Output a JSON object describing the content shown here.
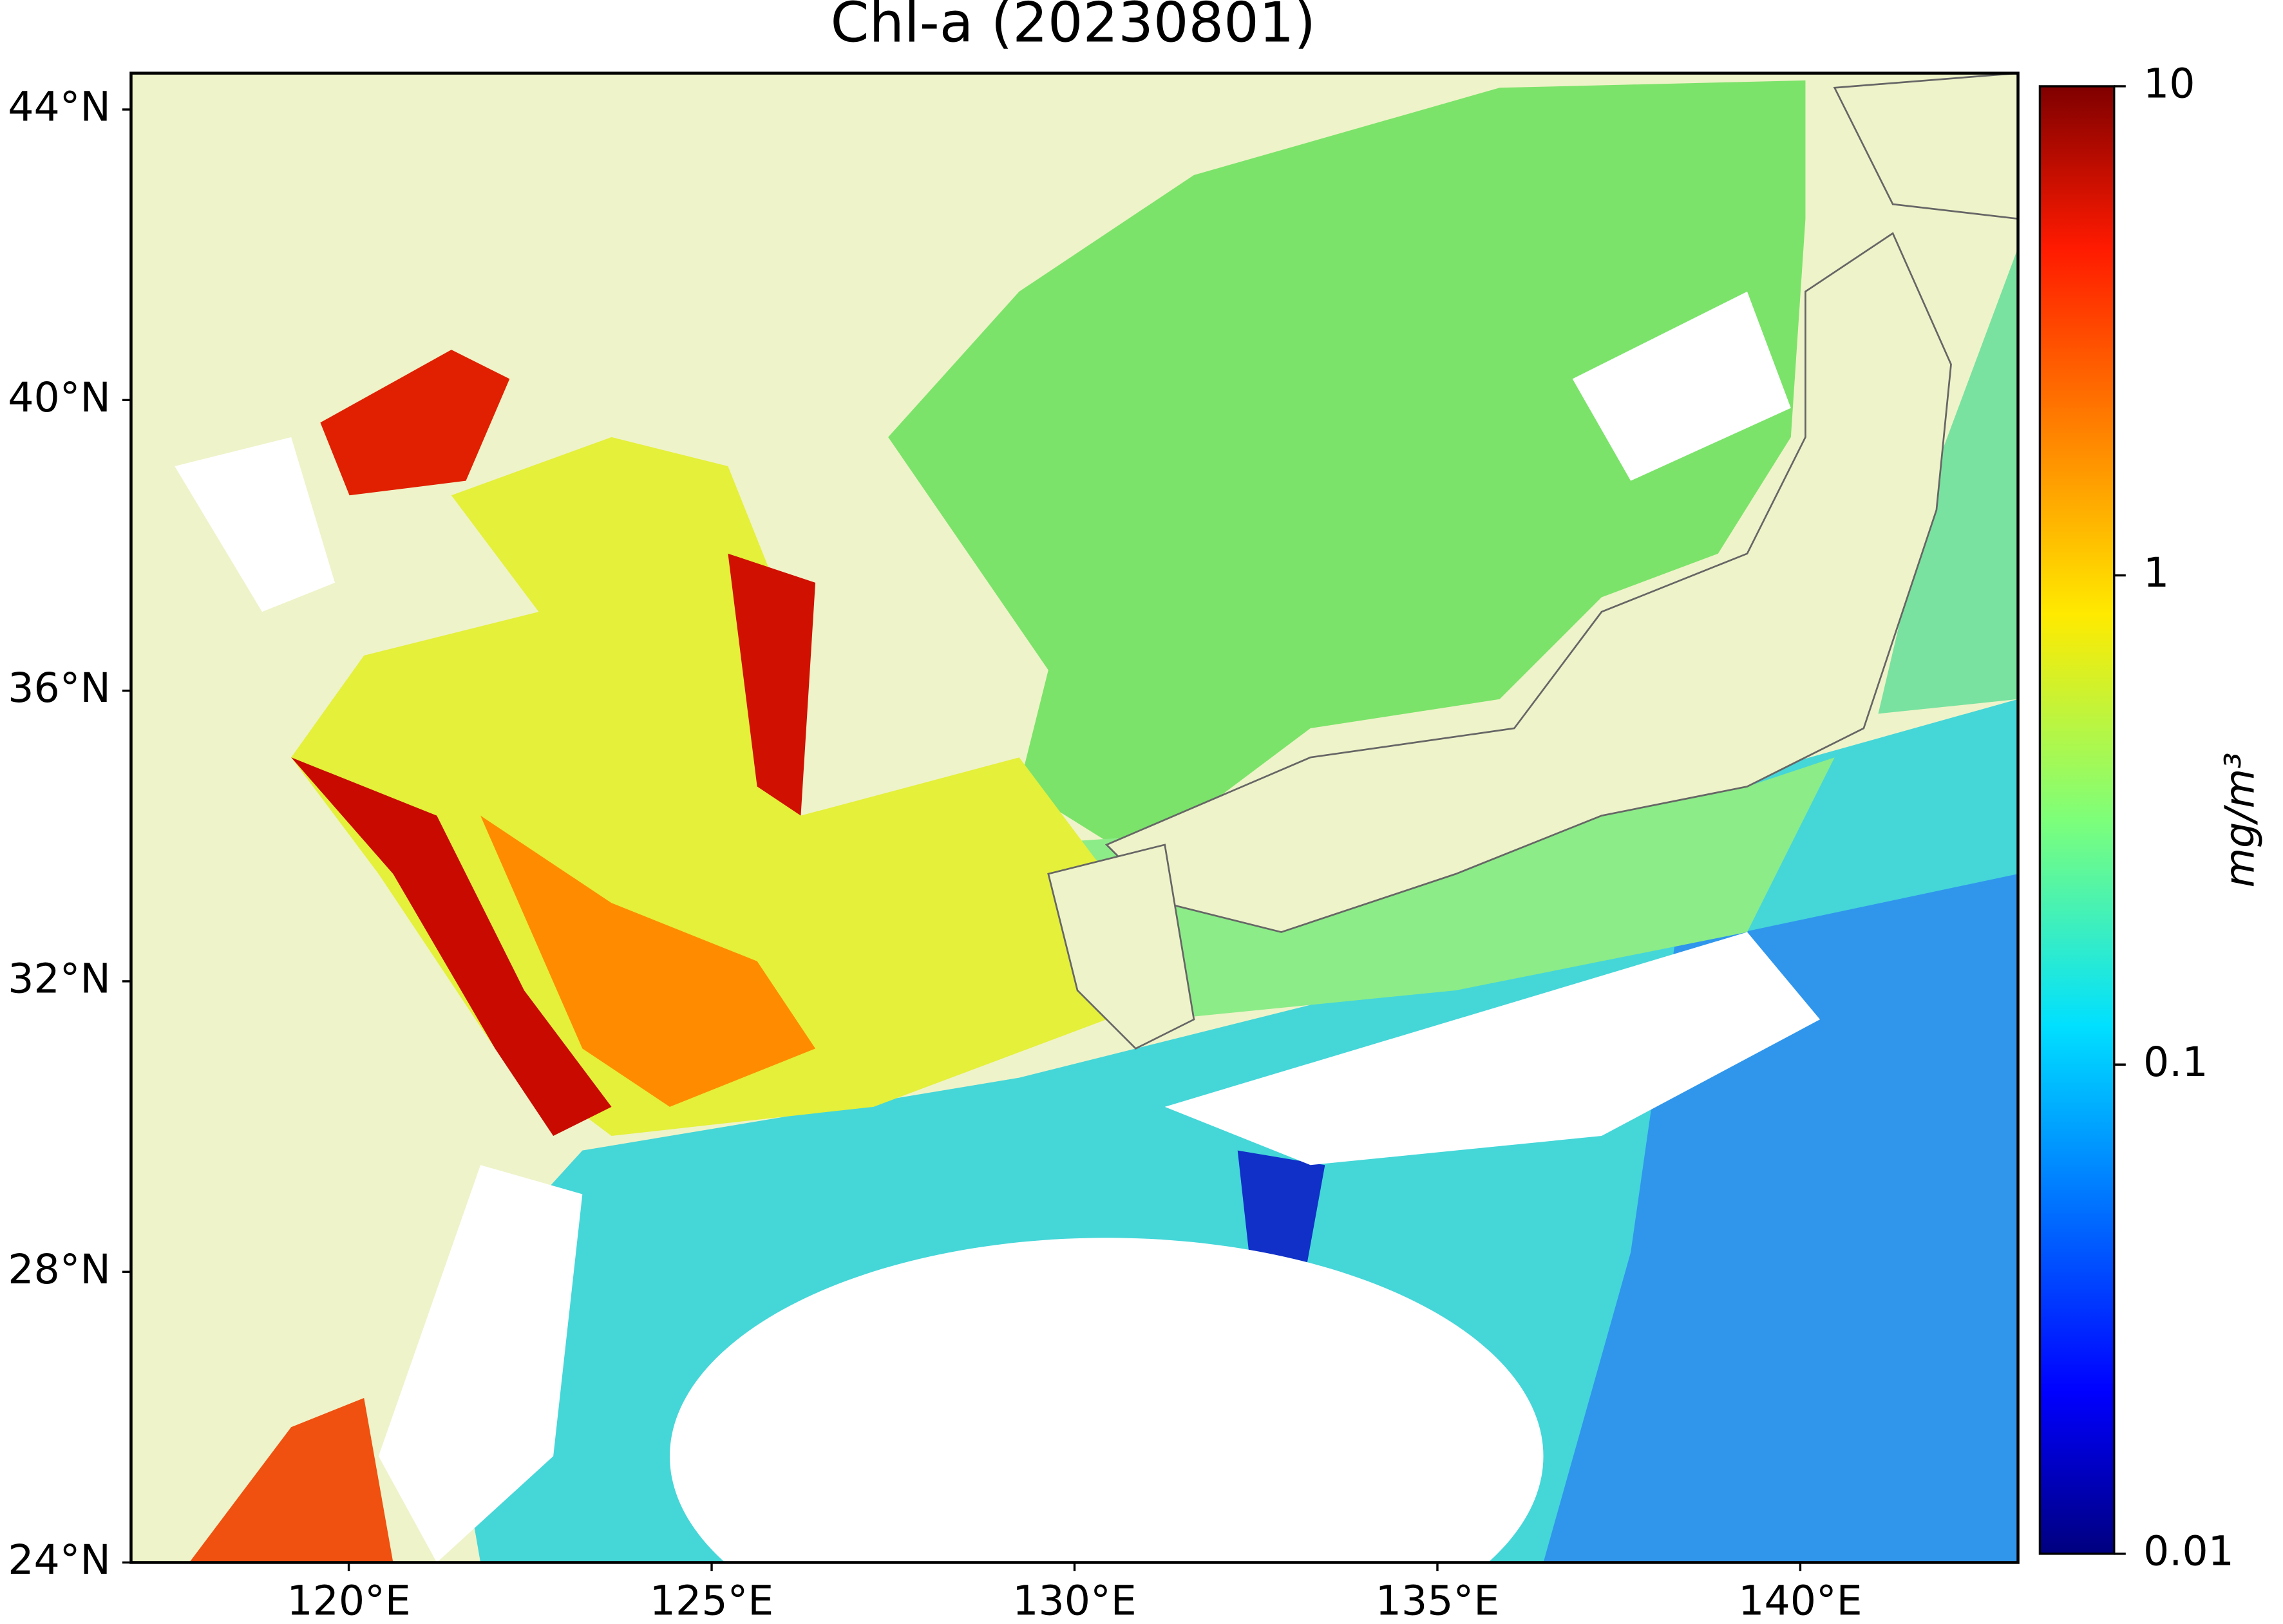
{
  "chart_data": {
    "type": "map",
    "title": "Chl-a (20230801)",
    "xlim": [
      117,
      143
    ],
    "ylim": [
      24,
      44.5
    ],
    "xticks": [
      {
        "value": 120,
        "label": "120°E"
      },
      {
        "value": 125,
        "label": "125°E"
      },
      {
        "value": 130,
        "label": "130°E"
      },
      {
        "value": 135,
        "label": "135°E"
      },
      {
        "value": 140,
        "label": "140°E"
      }
    ],
    "yticks": [
      {
        "value": 24,
        "label": "24°N"
      },
      {
        "value": 28,
        "label": "28°N"
      },
      {
        "value": 32,
        "label": "32°N"
      },
      {
        "value": 36,
        "label": "36°N"
      },
      {
        "value": 40,
        "label": "40°N"
      },
      {
        "value": 44,
        "label": "44°N"
      }
    ],
    "colorbar": {
      "label": "mg/m³",
      "scale": "log",
      "colormap": "jet",
      "clim": [
        0.01,
        10
      ],
      "ticks": [
        0.01,
        0.1,
        1,
        10
      ]
    },
    "land_color": "#eff3c9"
  }
}
